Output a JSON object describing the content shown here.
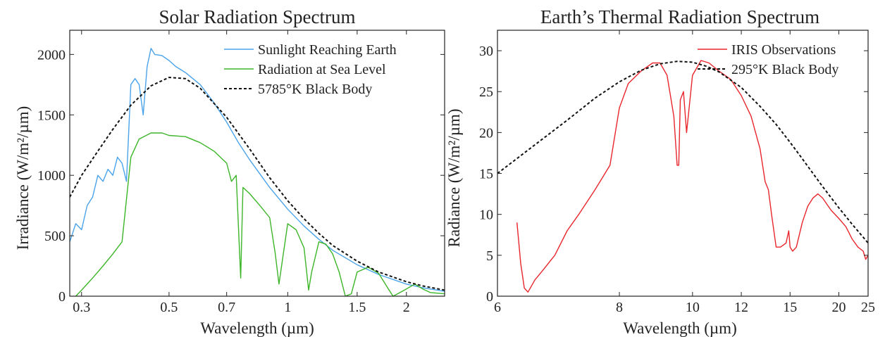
{
  "chart_data": [
    {
      "type": "line",
      "title": "Solar Radiation Spectrum",
      "xlabel": "Wavelength (µm)",
      "ylabel": "Irradiance (W/m²/µm)",
      "x_scale": "log",
      "xlim": [
        0.28,
        2.5
      ],
      "ylim": [
        0,
        2200
      ],
      "x_ticks": [
        0.3,
        0.5,
        0.7,
        1,
        1.5,
        2
      ],
      "x_tick_labels": [
        "0.3",
        "0.5",
        "0.7",
        "1",
        "1.5",
        "2"
      ],
      "y_ticks": [
        0,
        500,
        1000,
        1500,
        2000
      ],
      "y_tick_labels": [
        "0",
        "500",
        "1000",
        "1500",
        "2000"
      ],
      "legend_position": "top-right",
      "series": [
        {
          "name": "Sunlight Reaching Earth",
          "color": "#4aa3ea",
          "style": "solid",
          "x": [
            0.28,
            0.29,
            0.3,
            0.31,
            0.32,
            0.33,
            0.34,
            0.35,
            0.36,
            0.37,
            0.38,
            0.39,
            0.4,
            0.41,
            0.42,
            0.43,
            0.44,
            0.45,
            0.46,
            0.48,
            0.5,
            0.52,
            0.55,
            0.6,
            0.65,
            0.7,
            0.75,
            0.8,
            0.9,
            1.0,
            1.1,
            1.2,
            1.3,
            1.5,
            1.7,
            2.0,
            2.2,
            2.5
          ],
          "y": [
            450,
            600,
            550,
            750,
            820,
            1000,
            950,
            1050,
            1000,
            1150,
            1100,
            950,
            1750,
            1800,
            1750,
            1500,
            1900,
            2050,
            2000,
            1990,
            1950,
            1900,
            1850,
            1750,
            1600,
            1440,
            1270,
            1130,
            900,
            720,
            580,
            470,
            380,
            260,
            180,
            100,
            70,
            40
          ]
        },
        {
          "name": "Radiation at Sea Level",
          "color": "#3cb528",
          "style": "solid",
          "x": [
            0.29,
            0.3,
            0.32,
            0.34,
            0.36,
            0.38,
            0.4,
            0.42,
            0.45,
            0.48,
            0.5,
            0.55,
            0.6,
            0.65,
            0.7,
            0.72,
            0.74,
            0.76,
            0.77,
            0.8,
            0.85,
            0.9,
            0.93,
            0.95,
            1.0,
            1.05,
            1.1,
            1.13,
            1.15,
            1.2,
            1.25,
            1.3,
            1.35,
            1.4,
            1.45,
            1.5,
            1.6,
            1.7,
            1.8,
            1.85,
            1.9,
            2.0,
            2.1,
            2.2,
            2.3,
            2.5
          ],
          "y": [
            0,
            50,
            150,
            250,
            350,
            450,
            1150,
            1300,
            1350,
            1350,
            1330,
            1320,
            1270,
            1200,
            1100,
            950,
            1000,
            150,
            900,
            850,
            750,
            650,
            350,
            100,
            600,
            550,
            400,
            50,
            200,
            450,
            430,
            350,
            200,
            0,
            20,
            200,
            240,
            190,
            60,
            0,
            20,
            60,
            100,
            60,
            30,
            20
          ]
        },
        {
          "name": "5785°K Black Body",
          "color": "#111111",
          "style": "dashed",
          "x": [
            0.28,
            0.3,
            0.33,
            0.36,
            0.4,
            0.45,
            0.5,
            0.55,
            0.6,
            0.7,
            0.8,
            0.9,
            1.0,
            1.1,
            1.2,
            1.3,
            1.5,
            1.7,
            2.0,
            2.2,
            2.5
          ],
          "y": [
            820,
            1000,
            1200,
            1380,
            1580,
            1740,
            1810,
            1800,
            1720,
            1480,
            1220,
            980,
            790,
            640,
            520,
            420,
            290,
            200,
            120,
            85,
            50
          ]
        }
      ]
    },
    {
      "type": "line",
      "title": "Earth’s Thermal Radiation Spectrum",
      "xlabel": "Wavelength (µm)",
      "ylabel": "Radiance (W/m²/µm)",
      "x_scale": "reciprocal",
      "xlim": [
        6,
        25
      ],
      "ylim": [
        0,
        32.5
      ],
      "x_ticks": [
        6,
        8,
        10,
        12,
        15,
        20,
        25
      ],
      "x_tick_labels": [
        "6",
        "8",
        "10",
        "12",
        "15",
        "20",
        "25"
      ],
      "y_ticks": [
        0,
        5,
        10,
        15,
        20,
        25,
        30
      ],
      "y_tick_labels": [
        "0",
        "5",
        "10",
        "15",
        "20",
        "25",
        "30"
      ],
      "legend_position": "top-right",
      "series": [
        {
          "name": "IRIS Observations",
          "color": "#e8262c",
          "style": "solid",
          "x": [
            6.25,
            6.3,
            6.35,
            6.4,
            6.5,
            6.6,
            6.8,
            7.0,
            7.2,
            7.5,
            7.8,
            8.0,
            8.2,
            8.5,
            8.8,
            9.0,
            9.2,
            9.4,
            9.5,
            9.55,
            9.6,
            9.7,
            9.8,
            10.0,
            10.3,
            10.6,
            11.0,
            11.5,
            12.0,
            12.5,
            13.0,
            13.3,
            13.5,
            13.7,
            14.0,
            14.3,
            14.7,
            14.9,
            15.0,
            15.2,
            15.5,
            16.0,
            16.5,
            17.0,
            17.5,
            18.0,
            19.0,
            20.0,
            21.0,
            22.0,
            23.0,
            24.0,
            24.5,
            25.0
          ],
          "y": [
            9,
            4,
            1,
            0.5,
            2,
            3,
            5,
            8,
            10,
            13,
            16,
            23,
            26,
            27.5,
            28.5,
            28.5,
            27,
            22,
            16,
            16,
            24,
            25,
            20,
            27,
            28.8,
            28.5,
            27.5,
            26.5,
            24.5,
            22,
            18,
            14,
            13,
            10,
            6,
            6,
            6.5,
            8,
            6,
            5.5,
            6,
            9,
            11,
            12,
            12.5,
            12,
            10.5,
            9.5,
            8.5,
            7,
            6,
            5.5,
            4.5,
            5
          ]
        },
        {
          "name": "295°K Black Body",
          "color": "#111111",
          "style": "dashed",
          "x": [
            6,
            6.5,
            7,
            7.5,
            8,
            8.5,
            9,
            9.5,
            10,
            10.5,
            11,
            12,
            13,
            14,
            15,
            16,
            17,
            18,
            20,
            22,
            25
          ],
          "y": [
            15,
            18.5,
            21.5,
            24.2,
            26.2,
            27.6,
            28.4,
            28.7,
            28.6,
            28.1,
            27.4,
            25.5,
            23.2,
            21.0,
            18.8,
            16.8,
            15.0,
            13.4,
            10.8,
            8.8,
            6.5
          ]
        }
      ]
    }
  ]
}
